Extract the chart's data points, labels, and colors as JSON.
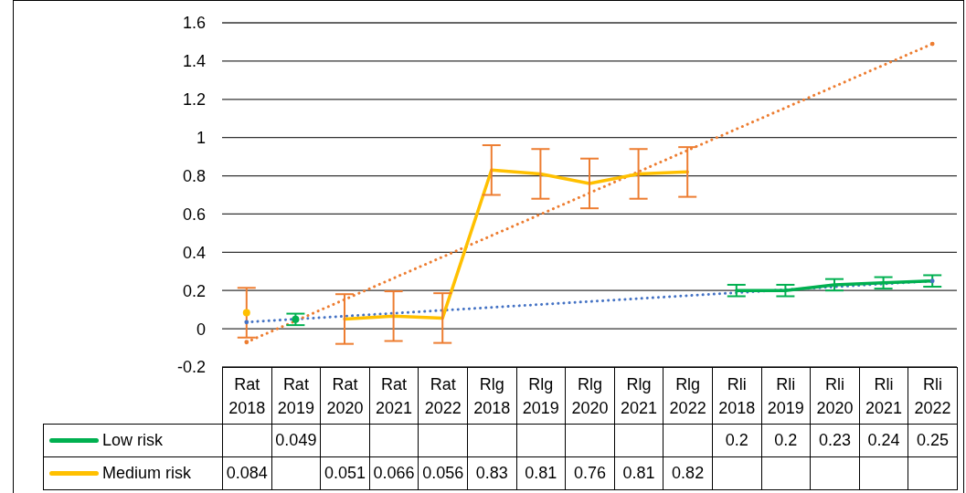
{
  "chart_data": {
    "type": "line",
    "categories": [
      "Rat 2018",
      "Rat 2019",
      "Rat 2020",
      "Rat 2021",
      "Rat 2022",
      "Rlg 2018",
      "Rlg 2019",
      "Rlg 2020",
      "Rlg 2021",
      "Rlg 2022",
      "Rli 2018",
      "Rli 2019",
      "Rli 2020",
      "Rli 2021",
      "Rli 2022"
    ],
    "ylim": [
      -0.2,
      1.6
    ],
    "yticks": [
      -0.2,
      0,
      0.2,
      0.4,
      0.6,
      0.8,
      1,
      1.2,
      1.4,
      1.6
    ],
    "grid": "y",
    "legend": "bottom",
    "marker": "none",
    "series": [
      {
        "name": "Low risk",
        "color": "#00b050",
        "values": [
          null,
          0.049,
          null,
          null,
          null,
          null,
          null,
          null,
          null,
          null,
          0.2,
          0.2,
          0.23,
          0.24,
          0.25
        ],
        "value_labels": [
          null,
          "0.049",
          null,
          null,
          null,
          null,
          null,
          null,
          null,
          null,
          "0.2",
          "0.2",
          "0.23",
          "0.24",
          "0.25"
        ],
        "errors": [
          null,
          0.03,
          null,
          null,
          null,
          null,
          null,
          null,
          null,
          null,
          0.03,
          0.03,
          0.03,
          0.03,
          0.03
        ]
      },
      {
        "name": "Medium risk",
        "color": "#ffc000",
        "values": [
          0.084,
          null,
          0.051,
          0.066,
          0.056,
          0.83,
          0.81,
          0.76,
          0.81,
          0.82,
          null,
          null,
          null,
          null,
          null
        ],
        "value_labels": [
          "0.084",
          null,
          "0.051",
          "0.066",
          "0.056",
          "0.83",
          "0.81",
          "0.76",
          "0.81",
          "0.82",
          null,
          null,
          null,
          null,
          null
        ],
        "errors": [
          0.13,
          null,
          0.13,
          0.13,
          0.13,
          0.13,
          0.13,
          0.13,
          0.13,
          0.13,
          null,
          null,
          null,
          null,
          null
        ]
      },
      {
        "type": "line",
        "color": "#4472c4",
        "line_style": "dotted",
        "x": [
          "Rat 2018",
          "Rli 2022"
        ],
        "values": [
          0.035,
          0.25
        ]
      },
      {
        "type": "line",
        "color": "#ed7d31",
        "line_style": "dotted",
        "x": [
          "Rat 2018",
          "Rli 2022"
        ],
        "values": [
          -0.07,
          1.49
        ]
      }
    ]
  }
}
